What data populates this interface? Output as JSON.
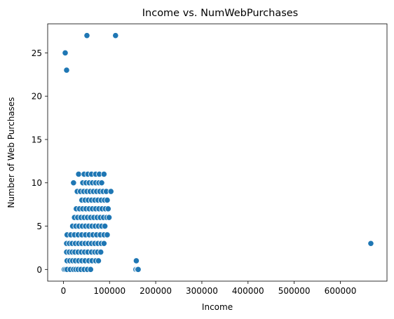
{
  "chart_data": {
    "type": "scatter",
    "title": "Income vs. NumWebPurchases",
    "xlabel": "Income",
    "ylabel": "Number of Web Purchases",
    "xlim": [
      -34000,
      701000
    ],
    "ylim": [
      -1.35,
      28.35
    ],
    "xticks": [
      0,
      100000,
      200000,
      300000,
      400000,
      500000,
      600000
    ],
    "xtick_labels": [
      "0",
      "100000",
      "200000",
      "300000",
      "400000",
      "500000",
      "600000"
    ],
    "yticks": [
      0,
      5,
      10,
      15,
      20,
      25
    ],
    "ytick_labels": [
      "0",
      "5",
      "10",
      "15",
      "20",
      "25"
    ],
    "grid": false,
    "marker_color": "#1f77b4",
    "marker_edge_color": "#ffffff",
    "series": [
      {
        "points": [
          [
            4000,
            25
          ],
          [
            7000,
            23
          ],
          [
            51000,
            27
          ],
          [
            113000,
            27
          ],
          [
            666000,
            3
          ],
          [
            158000,
            1
          ],
          [
            157000,
            0
          ],
          [
            160000,
            0
          ],
          [
            162000,
            0
          ],
          [
            2000,
            0
          ],
          [
            5000,
            0
          ],
          [
            8000,
            0
          ],
          [
            15000,
            0
          ],
          [
            22000,
            0
          ],
          [
            27000,
            0
          ],
          [
            32000,
            0
          ],
          [
            38000,
            0
          ],
          [
            45000,
            0
          ],
          [
            52000,
            0
          ],
          [
            59000,
            0
          ],
          [
            8000,
            1
          ],
          [
            14000,
            1
          ],
          [
            20000,
            1
          ],
          [
            26000,
            1
          ],
          [
            33000,
            1
          ],
          [
            40000,
            1
          ],
          [
            47000,
            1
          ],
          [
            55000,
            1
          ],
          [
            62000,
            1
          ],
          [
            70000,
            1
          ],
          [
            76000,
            1
          ],
          [
            7000,
            2
          ],
          [
            13000,
            2
          ],
          [
            19000,
            2
          ],
          [
            25000,
            2
          ],
          [
            32000,
            2
          ],
          [
            39000,
            2
          ],
          [
            46000,
            2
          ],
          [
            53000,
            2
          ],
          [
            61000,
            2
          ],
          [
            68000,
            2
          ],
          [
            74000,
            2
          ],
          [
            81000,
            2
          ],
          [
            7000,
            3
          ],
          [
            13000,
            3
          ],
          [
            19000,
            3
          ],
          [
            26000,
            3
          ],
          [
            33000,
            3
          ],
          [
            40000,
            3
          ],
          [
            47000,
            3
          ],
          [
            54000,
            3
          ],
          [
            61000,
            3
          ],
          [
            68000,
            3
          ],
          [
            75000,
            3
          ],
          [
            82000,
            3
          ],
          [
            88000,
            3
          ],
          [
            8000,
            4
          ],
          [
            16000,
            4
          ],
          [
            24000,
            4
          ],
          [
            32000,
            4
          ],
          [
            40000,
            4
          ],
          [
            48000,
            4
          ],
          [
            56000,
            4
          ],
          [
            64000,
            4
          ],
          [
            72000,
            4
          ],
          [
            80000,
            4
          ],
          [
            88000,
            4
          ],
          [
            95000,
            4
          ],
          [
            20000,
            5
          ],
          [
            27000,
            5
          ],
          [
            34000,
            5
          ],
          [
            41000,
            5
          ],
          [
            48000,
            5
          ],
          [
            55000,
            5
          ],
          [
            62000,
            5
          ],
          [
            69000,
            5
          ],
          [
            76000,
            5
          ],
          [
            83000,
            5
          ],
          [
            90000,
            5
          ],
          [
            24000,
            6
          ],
          [
            31000,
            6
          ],
          [
            38000,
            6
          ],
          [
            45000,
            6
          ],
          [
            52000,
            6
          ],
          [
            59000,
            6
          ],
          [
            66000,
            6
          ],
          [
            73000,
            6
          ],
          [
            80000,
            6
          ],
          [
            87000,
            6
          ],
          [
            94000,
            6
          ],
          [
            99000,
            6
          ],
          [
            28000,
            7
          ],
          [
            35000,
            7
          ],
          [
            42000,
            7
          ],
          [
            49000,
            7
          ],
          [
            56000,
            7
          ],
          [
            63000,
            7
          ],
          [
            70000,
            7
          ],
          [
            77000,
            7
          ],
          [
            84000,
            7
          ],
          [
            91000,
            7
          ],
          [
            97000,
            7
          ],
          [
            40000,
            8
          ],
          [
            47000,
            8
          ],
          [
            54000,
            8
          ],
          [
            61000,
            8
          ],
          [
            68000,
            8
          ],
          [
            75000,
            8
          ],
          [
            82000,
            8
          ],
          [
            89000,
            8
          ],
          [
            95000,
            8
          ],
          [
            30000,
            9
          ],
          [
            37000,
            9
          ],
          [
            44000,
            9
          ],
          [
            51000,
            9
          ],
          [
            58000,
            9
          ],
          [
            65000,
            9
          ],
          [
            72000,
            9
          ],
          [
            79000,
            9
          ],
          [
            86000,
            9
          ],
          [
            93000,
            9
          ],
          [
            103000,
            9
          ],
          [
            22000,
            10
          ],
          [
            42000,
            10
          ],
          [
            49000,
            10
          ],
          [
            56000,
            10
          ],
          [
            63000,
            10
          ],
          [
            70000,
            10
          ],
          [
            77000,
            10
          ],
          [
            83000,
            10
          ],
          [
            33000,
            11
          ],
          [
            45000,
            11
          ],
          [
            53000,
            11
          ],
          [
            61000,
            11
          ],
          [
            70000,
            11
          ],
          [
            78000,
            11
          ],
          [
            88000,
            11
          ]
        ]
      }
    ]
  }
}
